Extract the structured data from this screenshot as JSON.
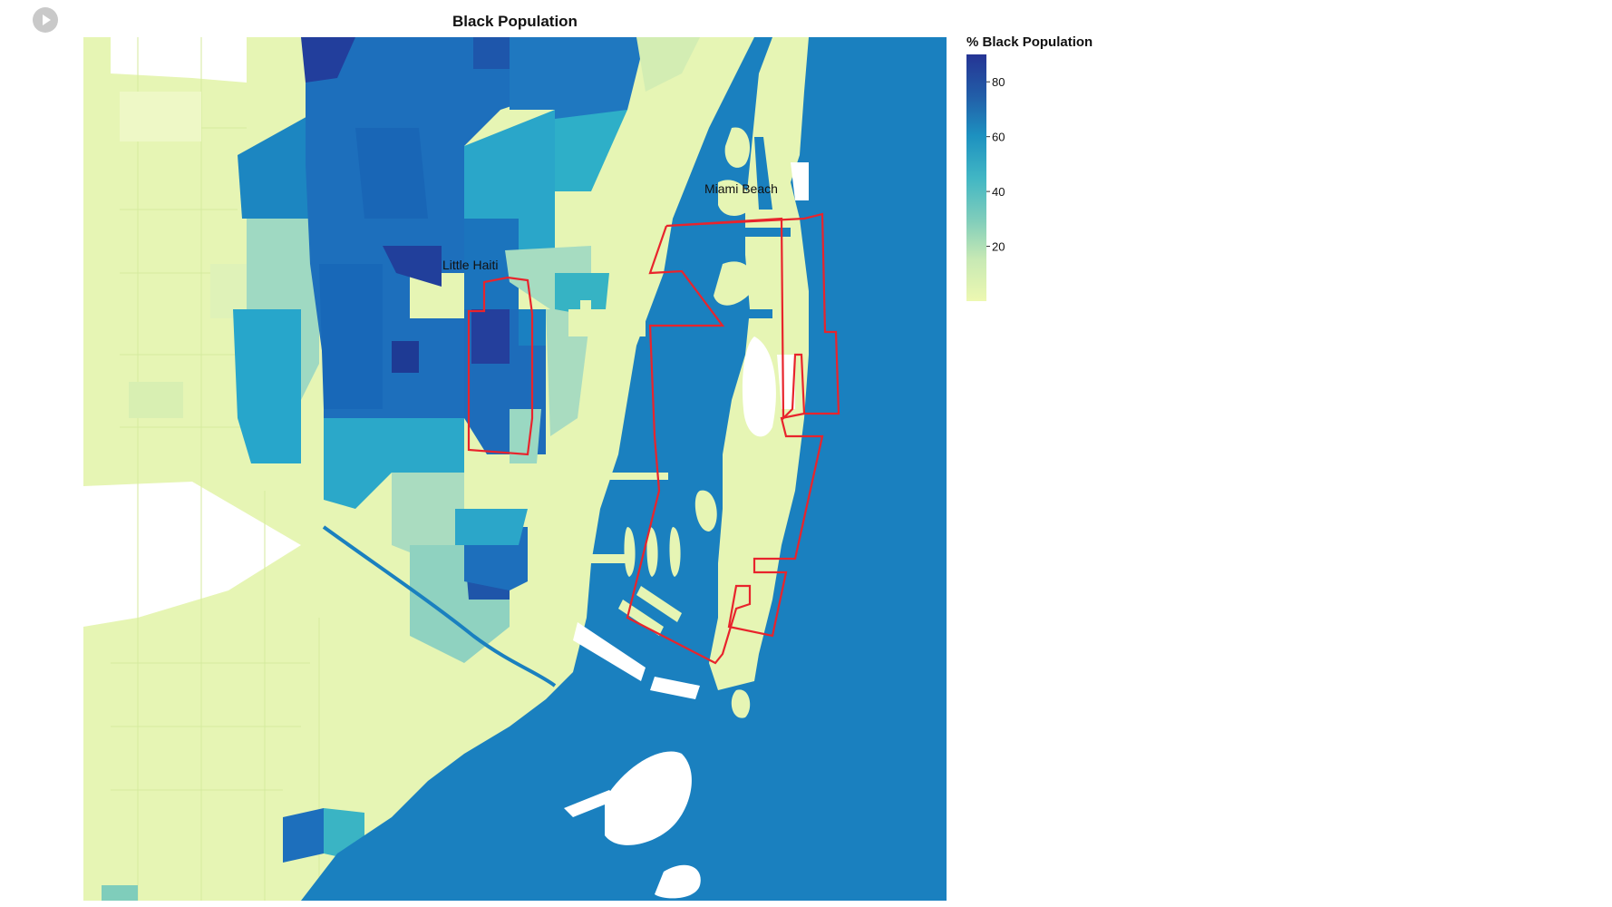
{
  "toolbar": {
    "play_icon": "play-icon"
  },
  "map": {
    "title": "Black Population",
    "place_labels": {
      "little_haiti": "Little Haiti",
      "miami_beach": "Miami Beach"
    },
    "colors": {
      "water": "#1a80bf",
      "land_low": "#e6f5b4",
      "land_mid": "#a9dcc0",
      "teal": "#3fb4c4",
      "blue": "#1d6fbc",
      "dark_blue": "#233d99",
      "boundary": "#e8242c",
      "no_data": "#ffffff"
    }
  },
  "legend": {
    "title": "% Black Population",
    "ticks": [
      "80",
      "60",
      "40",
      "20"
    ],
    "tick_values": [
      80,
      60,
      40,
      20
    ],
    "range": [
      0,
      90
    ],
    "color_stops": [
      "#edf8b1",
      "#c7e9b4",
      "#7fcdbb",
      "#41b6c4",
      "#1d91c0",
      "#225ea8",
      "#253494"
    ]
  }
}
